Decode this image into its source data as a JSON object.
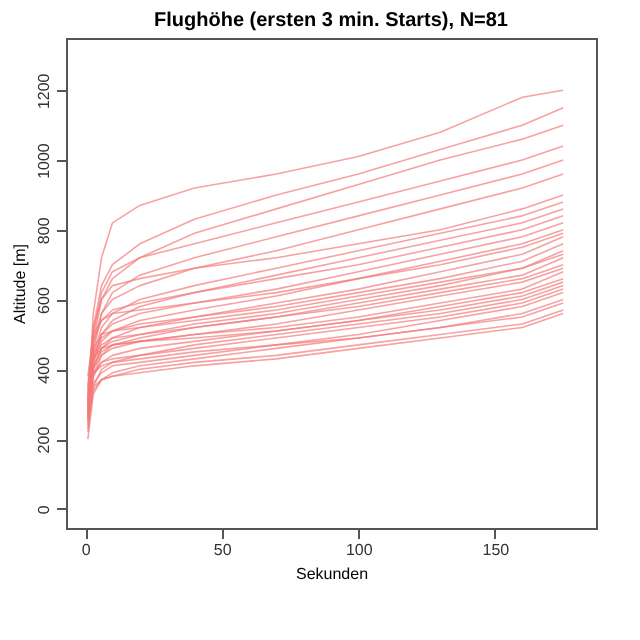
{
  "chart_data": {
    "type": "line",
    "title": "Flughöhe (ersten 3 min. Starts), N=81",
    "xlabel": "Sekunden",
    "ylabel": "Altitude [m]",
    "x": [
      1,
      3,
      6,
      10,
      20,
      40,
      70,
      100,
      130,
      160,
      175
    ],
    "xlim": [
      -7,
      187
    ],
    "xticks": [
      0,
      50,
      100,
      150
    ],
    "ylim": [
      -55,
      1350
    ],
    "yticks": [
      0,
      200,
      400,
      600,
      800,
      1000,
      1200
    ],
    "grid": false,
    "legend": false,
    "marker": "none",
    "line_style": "solid",
    "series": [
      {
        "color": "#f47a7a",
        "values": [
          280,
          560,
          720,
          820,
          870,
          920,
          960,
          1010,
          1080,
          1180,
          1200
        ]
      },
      {
        "color": "#f47a7a",
        "values": [
          300,
          520,
          640,
          700,
          760,
          830,
          900,
          960,
          1030,
          1100,
          1150
        ]
      },
      {
        "color": "#f47a7a",
        "values": [
          260,
          480,
          600,
          660,
          720,
          790,
          860,
          930,
          1000,
          1060,
          1100
        ]
      },
      {
        "color": "#f47a7a",
        "values": [
          320,
          500,
          620,
          680,
          720,
          760,
          820,
          880,
          940,
          1000,
          1040
        ]
      },
      {
        "color": "#f47a7a",
        "values": [
          240,
          450,
          560,
          620,
          670,
          720,
          780,
          840,
          900,
          960,
          1000
        ]
      },
      {
        "color": "#f47a7a",
        "values": [
          300,
          470,
          560,
          600,
          640,
          690,
          740,
          800,
          860,
          920,
          960
        ]
      },
      {
        "color": "#f47a7a",
        "values": [
          350,
          520,
          600,
          640,
          660,
          690,
          720,
          760,
          800,
          860,
          900
        ]
      },
      {
        "color": "#f47a7a",
        "values": [
          280,
          440,
          520,
          560,
          600,
          640,
          690,
          740,
          790,
          840,
          880
        ]
      },
      {
        "color": "#f47a7a",
        "values": [
          260,
          420,
          500,
          540,
          580,
          620,
          670,
          720,
          770,
          820,
          860
        ]
      },
      {
        "color": "#f47a7a",
        "values": [
          330,
          480,
          540,
          570,
          590,
          620,
          660,
          700,
          750,
          800,
          840
        ]
      },
      {
        "color": "#f47a7a",
        "values": [
          300,
          430,
          500,
          530,
          560,
          590,
          630,
          680,
          730,
          780,
          820
        ]
      },
      {
        "color": "#f47a7a",
        "values": [
          270,
          420,
          480,
          510,
          540,
          570,
          610,
          660,
          710,
          760,
          800
        ]
      },
      {
        "color": "#f47a7a",
        "values": [
          380,
          500,
          540,
          560,
          570,
          590,
          620,
          660,
          700,
          750,
          790
        ]
      },
      {
        "color": "#f47a7a",
        "values": [
          250,
          400,
          460,
          490,
          520,
          550,
          590,
          630,
          680,
          730,
          780
        ]
      },
      {
        "color": "#f47a7a",
        "values": [
          310,
          440,
          490,
          510,
          530,
          550,
          580,
          620,
          660,
          710,
          760
        ]
      },
      {
        "color": "#f47a7a",
        "values": [
          290,
          410,
          460,
          480,
          500,
          530,
          560,
          600,
          640,
          690,
          740
        ]
      },
      {
        "color": "#f47a7a",
        "values": [
          350,
          460,
          500,
          510,
          520,
          540,
          570,
          610,
          650,
          690,
          730
        ]
      },
      {
        "color": "#f47a7a",
        "values": [
          230,
          380,
          440,
          470,
          490,
          520,
          550,
          590,
          630,
          670,
          720
        ]
      },
      {
        "color": "#f47a7a",
        "values": [
          320,
          430,
          470,
          490,
          500,
          520,
          550,
          580,
          620,
          660,
          700
        ]
      },
      {
        "color": "#f47a7a",
        "values": [
          280,
          400,
          440,
          460,
          480,
          500,
          530,
          570,
          610,
          650,
          690
        ]
      },
      {
        "color": "#f47a7a",
        "values": [
          300,
          410,
          450,
          470,
          480,
          500,
          520,
          550,
          590,
          630,
          680
        ]
      },
      {
        "color": "#f47a7a",
        "values": [
          260,
          380,
          420,
          440,
          460,
          480,
          510,
          540,
          580,
          620,
          660
        ]
      },
      {
        "color": "#f47a7a",
        "values": [
          340,
          430,
          460,
          470,
          480,
          490,
          510,
          540,
          570,
          610,
          650
        ]
      },
      {
        "color": "#f47a7a",
        "values": [
          220,
          350,
          400,
          420,
          440,
          470,
          500,
          530,
          560,
          600,
          640
        ]
      },
      {
        "color": "#f47a7a",
        "values": [
          290,
          390,
          420,
          430,
          440,
          460,
          490,
          520,
          550,
          590,
          630
        ]
      },
      {
        "color": "#f47a7a",
        "values": [
          270,
          360,
          390,
          410,
          420,
          440,
          470,
          500,
          540,
          580,
          620
        ]
      },
      {
        "color": "#f47a7a",
        "values": [
          310,
          390,
          410,
          420,
          430,
          450,
          470,
          490,
          520,
          560,
          600
        ]
      },
      {
        "color": "#f47a7a",
        "values": [
          200,
          330,
          370,
          390,
          410,
          430,
          460,
          490,
          520,
          550,
          590
        ]
      },
      {
        "color": "#f47a7a",
        "values": [
          250,
          340,
          370,
          380,
          400,
          420,
          440,
          470,
          500,
          530,
          570
        ]
      },
      {
        "color": "#f47a7a",
        "values": [
          280,
          350,
          370,
          380,
          390,
          410,
          430,
          460,
          490,
          520,
          560
        ]
      }
    ]
  }
}
